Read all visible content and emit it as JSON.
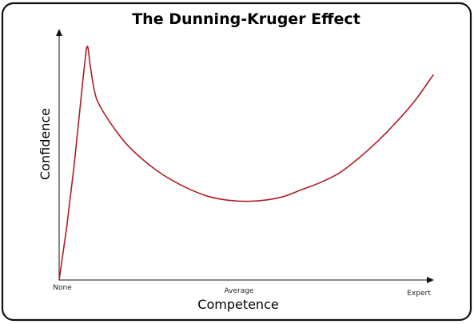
{
  "chart_data": {
    "type": "line",
    "title": "The Dunning-Kruger Effect",
    "xlabel": "Competence",
    "ylabel": "Confidence",
    "x_tick_labels": [
      "None",
      "Average",
      "Expert"
    ],
    "xlim": [
      0,
      100
    ],
    "ylim": [
      0,
      100
    ],
    "grid": false,
    "line_color": "#b01c24",
    "series": [
      {
        "x": [
          0,
          2,
          4,
          6.5,
          7.5,
          8.3,
          9,
          10,
          12,
          15,
          18,
          22,
          26,
          30,
          35,
          40,
          45,
          50,
          55,
          60,
          65,
          70,
          75,
          80,
          85,
          90,
          95,
          100
        ],
        "y": [
          0,
          22,
          48,
          86,
          98,
          90,
          83,
          76,
          70,
          63,
          57,
          51,
          46,
          42,
          38,
          35,
          33.5,
          33,
          33.5,
          35,
          38,
          41,
          45,
          51,
          58,
          66,
          75,
          86
        ]
      }
    ]
  }
}
